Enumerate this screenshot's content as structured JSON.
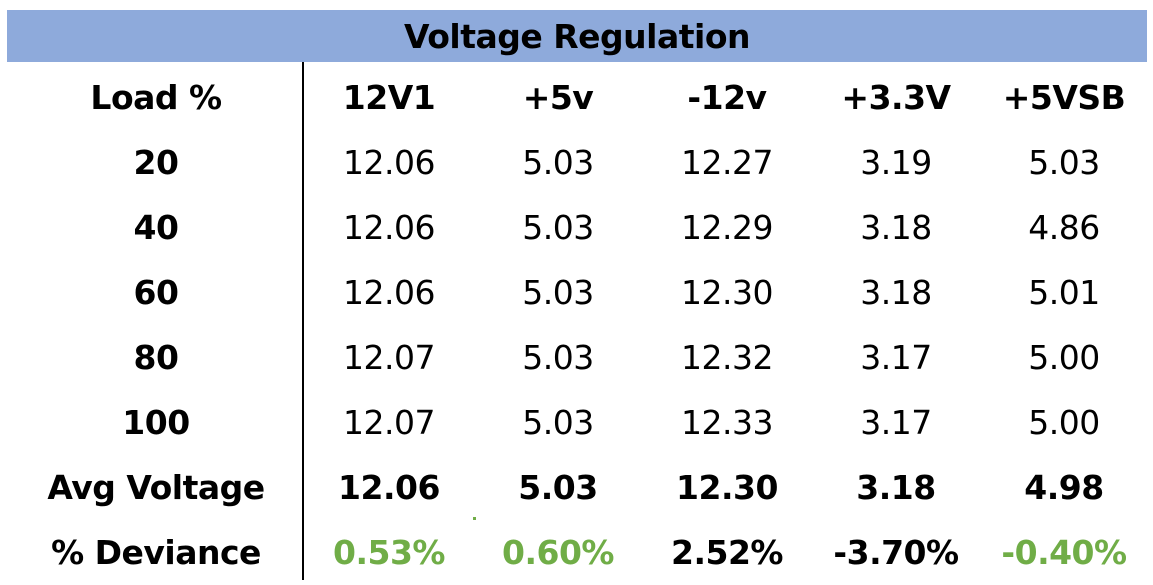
{
  "chart_data": {
    "type": "table",
    "title": "Voltage Regulation",
    "columns": [
      "Load %",
      "12V1",
      "+5v",
      "-12v",
      "+3.3V",
      "+5VSB"
    ],
    "rows": [
      [
        "20",
        "12.06",
        "5.03",
        "12.27",
        "3.19",
        "5.03"
      ],
      [
        "40",
        "12.06",
        "5.03",
        "12.29",
        "3.18",
        "4.86"
      ],
      [
        "60",
        "12.06",
        "5.03",
        "12.30",
        "3.18",
        "5.01"
      ],
      [
        "80",
        "12.07",
        "5.03",
        "12.32",
        "3.17",
        "5.00"
      ],
      [
        "100",
        "12.07",
        "5.03",
        "12.33",
        "3.17",
        "5.00"
      ]
    ],
    "avg_row": [
      "Avg Voltage",
      "12.06",
      "5.03",
      "12.30",
      "3.18",
      "4.98"
    ],
    "deviance_row": [
      "% Deviance",
      "0.53%",
      "0.60%",
      "2.52%",
      "-3.70%",
      "-0.40%"
    ],
    "deviance_colors": [
      "#000000",
      "#70ad47",
      "#70ad47",
      "#000000",
      "#000000",
      "#70ad47"
    ]
  }
}
